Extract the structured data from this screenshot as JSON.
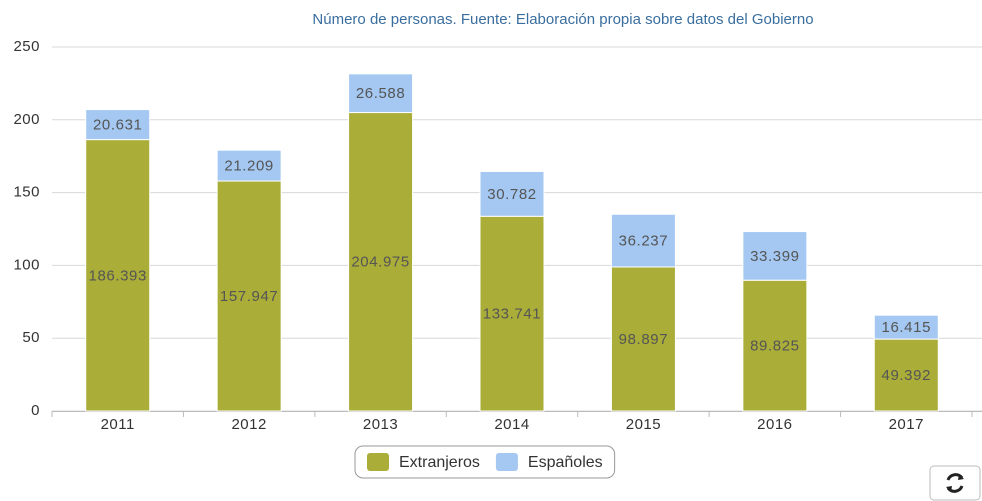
{
  "chart_data": {
    "type": "stacked-bar",
    "title": "Número de personas. Fuente: Elaboración propia sobre datos del Gobierno",
    "categories": [
      "2011",
      "2012",
      "2013",
      "2014",
      "2015",
      "2016",
      "2017"
    ],
    "series": [
      {
        "name": "Extranjeros",
        "color": "#aaad38",
        "values": [
          186.393,
          157.947,
          204.975,
          133.741,
          98.897,
          89.825,
          49.392
        ]
      },
      {
        "name": "Españoles",
        "color": "#a4c8f2",
        "values": [
          20.631,
          21.209,
          26.588,
          30.782,
          36.237,
          33.399,
          16.415
        ]
      }
    ],
    "ylim": [
      0,
      250
    ],
    "yticks": [
      0,
      50,
      100,
      150,
      200,
      250
    ],
    "grid": true,
    "legend": "bottom"
  }
}
